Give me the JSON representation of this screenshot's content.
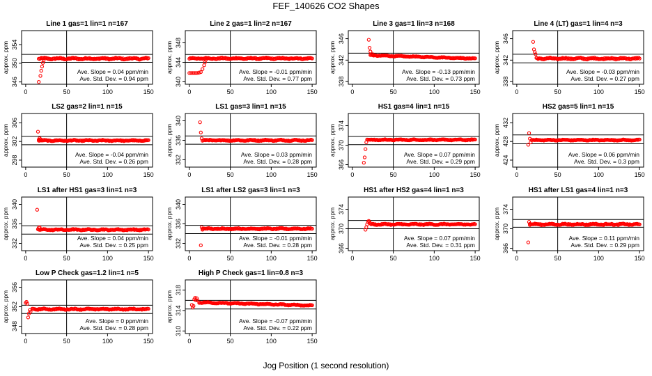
{
  "figure": {
    "title": "FEF_140626  CO2 Shapes",
    "xlabel": "Jog Position (1 second resolution)"
  },
  "style": {
    "point_color": "#ff0000",
    "line_color": "#000000"
  },
  "chart_data": [
    {
      "type": "scatter",
      "title": "Line 1 gas=1 lin=1 n=167",
      "ylabel": "approx. ppm",
      "xlim": [
        -5,
        155
      ],
      "ylim": [
        345.5,
        357
      ],
      "yticks": [
        346,
        350,
        354
      ],
      "xticks": [
        0,
        50,
        100,
        150
      ],
      "hlines": [
        351.9,
        350.2
      ],
      "vline": 50,
      "series": {
        "start": 16,
        "end": 150,
        "level": 351.0,
        "noise": 0.18,
        "early": [
          [
            16,
            346.0
          ],
          [
            18,
            347.3
          ],
          [
            19,
            348.4
          ],
          [
            20,
            349.3
          ],
          [
            21,
            350.1
          ],
          [
            22,
            350.6
          ]
        ]
      },
      "slope_text": "Ave. Slope = 0.04  ppm/min",
      "std_text": "Ave. Std. Dev. = 0.94  ppm"
    },
    {
      "type": "scatter",
      "title": "Line 2 gas=1 lin=2 n=167",
      "ylabel": "approx. ppm",
      "xlim": [
        -5,
        155
      ],
      "ylim": [
        339.5,
        350.5
      ],
      "yticks": [
        340,
        344,
        348
      ],
      "xticks": [
        0,
        50,
        100,
        150
      ],
      "hlines": [
        345.6,
        344.0
      ],
      "vline": 50,
      "series": {
        "start": 0,
        "end": 150,
        "level": 344.8,
        "noise": 0.15,
        "early": [
          [
            0,
            341.8
          ],
          [
            2,
            341.8
          ],
          [
            4,
            341.8
          ],
          [
            6,
            341.8
          ],
          [
            8,
            341.8
          ],
          [
            10,
            341.8
          ],
          [
            12,
            341.9
          ],
          [
            14,
            342.0
          ],
          [
            16,
            342.6
          ],
          [
            18,
            343.4
          ],
          [
            19,
            344.0
          ],
          [
            20,
            344.5
          ]
        ]
      },
      "slope_text": "Ave. Slope = -0.01  ppm/min",
      "std_text": "Ave. Std. Dev. = 0.77  ppm"
    },
    {
      "type": "scatter",
      "title": "Line 3 gas=1 lin=3 n=168",
      "ylabel": "approx. ppm",
      "xlim": [
        -5,
        155
      ],
      "ylim": [
        337.5,
        347.5
      ],
      "yticks": [
        338,
        342,
        346
      ],
      "xticks": [
        0,
        50,
        100,
        150
      ],
      "hlines": [
        343.3,
        341.6
      ],
      "vline": 50,
      "series": {
        "start": 22,
        "end": 150,
        "level": 342.9,
        "trend_end": 342.3,
        "noise": 0.08,
        "early": [
          [
            20,
            345.8
          ],
          [
            21,
            344.3
          ],
          [
            22,
            343.6
          ],
          [
            24,
            343.2
          ]
        ]
      },
      "slope_text": "Ave. Slope = -0.13  ppm/min",
      "std_text": "Ave. Std. Dev. = 0.73  ppm"
    },
    {
      "type": "scatter",
      "title": "Line 4 (LT) gas=1 lin=4 n=3",
      "ylabel": "approx. ppm",
      "xlim": [
        -5,
        155
      ],
      "ylim": [
        337.5,
        347.5
      ],
      "yticks": [
        338,
        342,
        346
      ],
      "xticks": [
        0,
        50,
        100,
        150
      ],
      "hlines": [
        343.1,
        341.5
      ],
      "vline": 50,
      "series": {
        "start": 24,
        "end": 150,
        "level": 342.3,
        "noise": 0.15,
        "early": [
          [
            20,
            345.4
          ],
          [
            21,
            344.0
          ],
          [
            22,
            343.5
          ],
          [
            23,
            343.1
          ]
        ]
      },
      "slope_text": "Ave. Slope = -0.03  ppm/min",
      "std_text": "Ave. Std. Dev. = 0.27  ppm"
    },
    {
      "type": "scatter",
      "title": "LS2 gas=2 lin=1 n=15",
      "ylabel": "approx. ppm",
      "xlim": [
        -5,
        155
      ],
      "ylim": [
        296.5,
        308
      ],
      "yticks": [
        298,
        302,
        306
      ],
      "xticks": [
        0,
        50,
        100,
        150
      ],
      "hlines": [
        303.1,
        301.3
      ],
      "vline": 50,
      "series": {
        "start": 16,
        "end": 150,
        "level": 302.2,
        "noise": 0.12,
        "early": [
          [
            15,
            304.1
          ],
          [
            16,
            302.4
          ],
          [
            17,
            302.7
          ],
          [
            18,
            302.5
          ]
        ]
      },
      "slope_text": "Ave. Slope = -0.04  ppm/min",
      "std_text": "Ave. Std. Dev. = 0.26  ppm"
    },
    {
      "type": "scatter",
      "title": "LS1 gas=3 lin=1 n=15",
      "ylabel": "approx. ppm",
      "xlim": [
        -5,
        155
      ],
      "ylim": [
        330.5,
        341.5
      ],
      "yticks": [
        332,
        336,
        340
      ],
      "xticks": [
        0,
        50,
        100,
        150
      ],
      "hlines": [
        336.9,
        335.2
      ],
      "vline": 50,
      "series": {
        "start": 16,
        "end": 150,
        "level": 336.0,
        "noise": 0.12,
        "early": [
          [
            13,
            339.7
          ],
          [
            14,
            337.6
          ],
          [
            15,
            336.4
          ]
        ]
      },
      "slope_text": "Ave. Slope = 0.03  ppm/min",
      "std_text": "Ave. Std. Dev. = 0.28  ppm"
    },
    {
      "type": "scatter",
      "title": "HS1 gas=4 lin=1 n=15",
      "ylabel": "approx. ppm",
      "xlim": [
        -5,
        155
      ],
      "ylim": [
        365.5,
        376.5
      ],
      "yticks": [
        366,
        370,
        374
      ],
      "xticks": [
        0,
        50,
        100,
        150
      ],
      "hlines": [
        371.8,
        370.1
      ],
      "vline": 50,
      "series": {
        "start": 18,
        "end": 150,
        "level": 371.1,
        "noise": 0.1,
        "early": [
          [
            14,
            366.4
          ],
          [
            15,
            367.5
          ],
          [
            16,
            369.2
          ],
          [
            17,
            370.6
          ]
        ]
      },
      "slope_text": "Ave. Slope = 0.07  ppm/min",
      "std_text": "Ave. Std. Dev. = 0.29  ppm"
    },
    {
      "type": "scatter",
      "title": "HS2 gas=5 lin=1 n=15",
      "ylabel": "approx. ppm",
      "xlim": [
        -5,
        155
      ],
      "ylim": [
        422.5,
        434
      ],
      "yticks": [
        424,
        428,
        432
      ],
      "xticks": [
        0,
        50,
        100,
        150
      ],
      "hlines": [
        429.4,
        427.5
      ],
      "vline": 50,
      "series": {
        "start": 18,
        "end": 150,
        "level": 428.3,
        "noise": 0.1,
        "early": [
          [
            14,
            427.3
          ],
          [
            15,
            429.8
          ],
          [
            16,
            428.6
          ],
          [
            17,
            427.8
          ]
        ]
      },
      "slope_text": "Ave. Slope = 0.06  ppm/min",
      "std_text": "Ave. Std. Dev. = 0.3  ppm"
    },
    {
      "type": "scatter",
      "title": "LS1 after HS1 gas=3 lin=1 n=3",
      "ylabel": "approx. ppm",
      "xlim": [
        -5,
        155
      ],
      "ylim": [
        330.5,
        341.5
      ],
      "yticks": [
        332,
        336,
        340
      ],
      "xticks": [
        0,
        50,
        100,
        150
      ],
      "hlines": [
        335.6,
        333.9
      ],
      "vline": 50,
      "series": {
        "start": 16,
        "end": 150,
        "level": 334.8,
        "noise": 0.12,
        "early": [
          [
            14,
            338.9
          ],
          [
            15,
            334.9
          ],
          [
            16,
            335.2
          ],
          [
            17,
            335.3
          ]
        ]
      },
      "slope_text": "Ave. Slope = 0.04  ppm/min",
      "std_text": "Ave. Std. Dev. = 0.25  ppm"
    },
    {
      "type": "scatter",
      "title": "LS1 after LS2 gas=3 lin=1 n=3",
      "ylabel": "approx. ppm",
      "xlim": [
        -5,
        155
      ],
      "ylim": [
        330.5,
        341.5
      ],
      "yticks": [
        332,
        336,
        340
      ],
      "xticks": [
        0,
        50,
        100,
        150
      ],
      "hlines": [
        335.7,
        334.0
      ],
      "vline": 50,
      "series": {
        "start": 16,
        "end": 150,
        "level": 335.0,
        "noise": 0.12,
        "early": [
          [
            14,
            331.6
          ],
          [
            15,
            335.3
          ],
          [
            16,
            334.8
          ]
        ]
      },
      "slope_text": "Ave. Slope = -0.01  ppm/min",
      "std_text": "Ave. Std. Dev. = 0.28  ppm"
    },
    {
      "type": "scatter",
      "title": "HS1 after HS2 gas=4 lin=1 n=3",
      "ylabel": "approx. ppm",
      "xlim": [
        -5,
        155
      ],
      "ylim": [
        365.5,
        376.5
      ],
      "yticks": [
        366,
        370,
        374
      ],
      "xticks": [
        0,
        50,
        100,
        150
      ],
      "hlines": [
        371.7,
        370.0
      ],
      "vline": 50,
      "series": {
        "start": 22,
        "end": 150,
        "level": 370.9,
        "noise": 0.12,
        "early": [
          [
            16,
            369.8
          ],
          [
            17,
            370.3
          ],
          [
            18,
            370.9
          ],
          [
            19,
            371.4
          ],
          [
            20,
            371.6
          ],
          [
            21,
            371.4
          ]
        ]
      },
      "slope_text": "Ave. Slope = 0.07  ppm/min",
      "std_text": "Ave. Std. Dev. = 0.31  ppm"
    },
    {
      "type": "scatter",
      "title": "HS1 after LS1 gas=4 lin=1 n=3",
      "ylabel": "approx. ppm",
      "xlim": [
        -5,
        155
      ],
      "ylim": [
        365.5,
        376.5
      ],
      "yticks": [
        366,
        370,
        374
      ],
      "xticks": [
        0,
        50,
        100,
        150
      ],
      "hlines": [
        371.9,
        370.3
      ],
      "vline": 50,
      "series": {
        "start": 16,
        "end": 150,
        "level": 370.9,
        "noise": 0.14,
        "early": [
          [
            14,
            367.2
          ],
          [
            15,
            371.4
          ],
          [
            16,
            371.0
          ]
        ]
      },
      "slope_text": "Ave. Slope = 0.11  ppm/min",
      "std_text": "Ave. Std. Dev. = 0.29  ppm"
    },
    {
      "type": "scatter",
      "title": "Low P Check gas=1.2 lin=1 n=5",
      "ylabel": "approx. ppm",
      "xlim": [
        -5,
        155
      ],
      "ylim": [
        346.5,
        357.5
      ],
      "yticks": [
        348,
        352,
        356
      ],
      "xticks": [
        0,
        50,
        100,
        150
      ],
      "hlines": [
        352.3,
        350.6
      ],
      "vline": 50,
      "series": {
        "start": 8,
        "end": 150,
        "level": 351.5,
        "noise": 0.12,
        "early": [
          [
            0,
            352.8
          ],
          [
            1,
            353.0
          ],
          [
            2,
            352.6
          ],
          [
            3,
            349.8
          ],
          [
            4,
            350.6
          ],
          [
            5,
            351.3
          ],
          [
            6,
            351.0
          ]
        ]
      },
      "slope_text": "Ave. Slope = 0  ppm/min",
      "std_text": "Ave. Std. Dev. = 0.28  ppm"
    },
    {
      "type": "scatter",
      "title": "High P Check gas=1 lin=0.8 n=3",
      "ylabel": "approx. ppm",
      "xlim": [
        -5,
        155
      ],
      "ylim": [
        309.5,
        320
      ],
      "yticks": [
        310,
        314,
        318
      ],
      "xticks": [
        0,
        50,
        100,
        150
      ],
      "hlines": [
        316.0,
        314.3
      ],
      "vline": 50,
      "series": {
        "start": 12,
        "end": 150,
        "level": 315.6,
        "trend_end": 315.0,
        "noise": 0.1,
        "early": [
          [
            3,
            315.1
          ],
          [
            4,
            314.6
          ],
          [
            5,
            314.9
          ],
          [
            6,
            316.2
          ],
          [
            7,
            316.5
          ],
          [
            8,
            316.0
          ],
          [
            9,
            316.4
          ],
          [
            10,
            316.0
          ]
        ]
      },
      "slope_text": "Ave. Slope = -0.07  ppm/min",
      "std_text": "Ave. Std. Dev. = 0.22  ppm"
    }
  ]
}
